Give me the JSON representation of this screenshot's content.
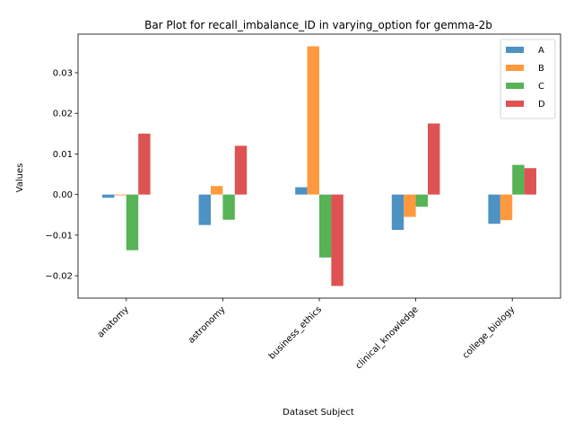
{
  "chart_data": {
    "type": "bar",
    "title": "Bar Plot for recall_imbalance_ID in varying_option for gemma-2b",
    "xlabel": "Dataset Subject",
    "ylabel": "Values",
    "categories": [
      "anatomy",
      "astronomy",
      "business_ethics",
      "clinical_knowledge",
      "college_biology"
    ],
    "series": [
      {
        "name": "A",
        "color": "#1f77b4",
        "values": [
          -0.0008,
          -0.0075,
          0.0018,
          -0.0087,
          -0.0072
        ]
      },
      {
        "name": "B",
        "color": "#ff7f0e",
        "values": [
          -0.0002,
          0.0021,
          0.0365,
          -0.0055,
          -0.0063
        ]
      },
      {
        "name": "C",
        "color": "#2ca02c",
        "values": [
          -0.0137,
          -0.0062,
          -0.0155,
          -0.003,
          0.0073
        ]
      },
      {
        "name": "D",
        "color": "#d62728",
        "values": [
          0.015,
          0.012,
          -0.0225,
          0.0175,
          0.0065
        ]
      }
    ],
    "ylim": [
      -0.0255,
      0.0395
    ],
    "yticks": [
      "−0.02",
      "−0.01",
      "0.00",
      "0.01",
      "0.02",
      "0.03"
    ],
    "ytick_values": [
      -0.02,
      -0.01,
      0.0,
      0.01,
      0.02,
      0.03
    ],
    "grid": false,
    "legend_position": "top-right"
  }
}
